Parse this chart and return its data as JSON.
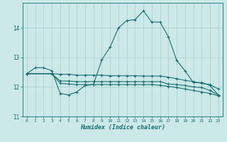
{
  "xlabel": "Humidex (Indice chaleur)",
  "background_color": "#cce8e8",
  "grid_color": "#aacfcf",
  "line_color": "#1a7070",
  "spine_color": "#2a8080",
  "xlim": [
    -0.5,
    23.5
  ],
  "ylim": [
    11.0,
    14.85
  ],
  "yticks": [
    11,
    12,
    13,
    14
  ],
  "xticks": [
    0,
    1,
    2,
    3,
    4,
    5,
    6,
    7,
    8,
    9,
    10,
    11,
    12,
    13,
    14,
    15,
    16,
    17,
    18,
    19,
    20,
    21,
    22,
    23
  ],
  "line1_x": [
    0,
    1,
    2,
    3,
    4,
    5,
    6,
    7,
    8,
    9,
    10,
    11,
    12,
    13,
    14,
    15,
    16,
    17,
    18,
    19,
    20,
    21,
    22,
    23
  ],
  "line1_y": [
    12.45,
    12.65,
    12.65,
    12.55,
    11.78,
    11.73,
    11.83,
    12.05,
    12.08,
    12.92,
    13.35,
    14.0,
    14.25,
    14.28,
    14.58,
    14.2,
    14.2,
    13.7,
    12.9,
    12.55,
    12.15,
    12.15,
    12.05,
    11.73
  ],
  "line2_x": [
    0,
    3,
    4,
    5,
    6,
    7,
    8,
    9,
    10,
    11,
    12,
    13,
    14,
    15,
    16,
    17,
    18,
    19,
    20,
    21,
    22,
    23
  ],
  "line2_y": [
    12.45,
    12.45,
    12.2,
    12.2,
    12.18,
    12.18,
    12.18,
    12.18,
    12.18,
    12.18,
    12.18,
    12.18,
    12.18,
    12.18,
    12.18,
    12.1,
    12.08,
    12.05,
    12.0,
    11.98,
    11.88,
    11.73
  ],
  "line3_x": [
    0,
    3,
    4,
    5,
    6,
    7,
    8,
    9,
    10,
    11,
    12,
    13,
    14,
    15,
    16,
    17,
    18,
    19,
    20,
    21,
    22,
    23
  ],
  "line3_y": [
    12.45,
    12.45,
    12.12,
    12.1,
    12.08,
    12.08,
    12.08,
    12.08,
    12.08,
    12.08,
    12.08,
    12.08,
    12.08,
    12.08,
    12.06,
    12.02,
    11.98,
    11.93,
    11.88,
    11.83,
    11.78,
    11.7
  ],
  "line4_x": [
    0,
    3,
    4,
    5,
    6,
    7,
    8,
    9,
    10,
    11,
    12,
    13,
    14,
    15,
    16,
    17,
    18,
    19,
    20,
    21,
    22,
    23
  ],
  "line4_y": [
    12.45,
    12.45,
    12.43,
    12.43,
    12.4,
    12.4,
    12.4,
    12.4,
    12.38,
    12.38,
    12.38,
    12.38,
    12.37,
    12.37,
    12.37,
    12.33,
    12.28,
    12.22,
    12.18,
    12.12,
    12.08,
    11.93
  ]
}
